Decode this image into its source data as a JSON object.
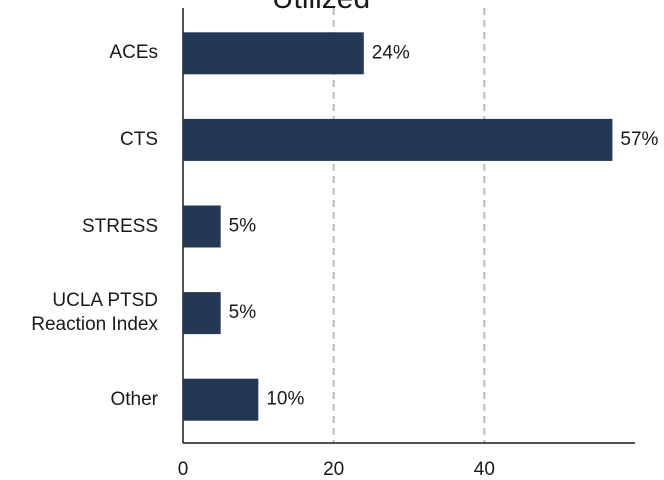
{
  "chart_data": {
    "type": "bar",
    "orientation": "horizontal",
    "title": "Utilized",
    "categories": [
      "ACEs",
      "CTS",
      "STRESS",
      "UCLA PTSD Reaction Index",
      "Other"
    ],
    "values": [
      24,
      57,
      5,
      5,
      10
    ],
    "value_labels": [
      "24%",
      "57%",
      "5%",
      "5%",
      "10%"
    ],
    "color": "#243753",
    "xlim": [
      0,
      60
    ],
    "xticks": [
      0,
      20,
      40
    ],
    "grid": true
  }
}
